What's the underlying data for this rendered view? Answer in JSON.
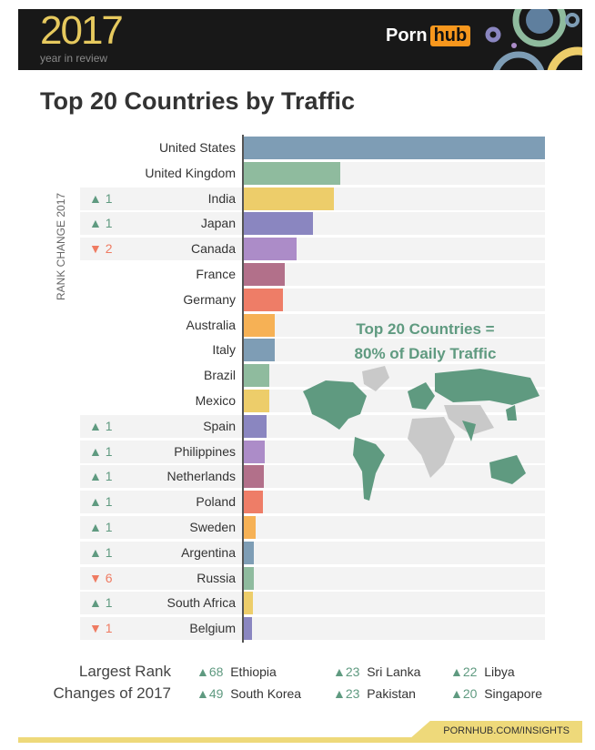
{
  "header": {
    "year": "2017",
    "subtitle": "year in review",
    "logo_left": "Porn",
    "logo_right": "hub"
  },
  "title": "Top 20 Countries by Traffic",
  "chart_data": {
    "type": "bar",
    "orientation": "horizontal",
    "title": "Top 20 Countries by Traffic",
    "ylabel": "RANK CHANGE 2017",
    "note": "relative traffic, United States = 100 (no axis printed)",
    "categories": [
      "United States",
      "United Kingdom",
      "India",
      "Japan",
      "Canada",
      "France",
      "Germany",
      "Australia",
      "Italy",
      "Brazil",
      "Mexico",
      "Spain",
      "Philippines",
      "Netherlands",
      "Poland",
      "Sweden",
      "Argentina",
      "Russia",
      "South Africa",
      "Belgium"
    ],
    "values": [
      100,
      32,
      30,
      23,
      17.5,
      13.6,
      13,
      10.3,
      10.3,
      8.5,
      8.5,
      7.5,
      7,
      6.6,
      6.3,
      4,
      3.3,
      3.3,
      3,
      2.7
    ],
    "rank_change": [
      null,
      null,
      "▲ 1",
      "▲ 1",
      "▼ 2",
      null,
      null,
      null,
      null,
      null,
      null,
      "▲ 1",
      "▲ 1",
      "▲ 1",
      "▲ 1",
      "▲ 1",
      "▲ 1",
      "▼ 6",
      "▲ 1",
      "▼ 1"
    ],
    "colors": [
      "#7e9db5",
      "#8fbb9e",
      "#edcd6a",
      "#8a86c0",
      "#ac8cc8",
      "#b2708a",
      "#ee7d67",
      "#f6b155",
      "#7e9db5",
      "#8fbb9e",
      "#edcd6a",
      "#8a86c0",
      "#ac8cc8",
      "#b2708a",
      "#ee7d67",
      "#f6b155",
      "#7e9db5",
      "#8fbb9e",
      "#edcd6a",
      "#8a86c0"
    ],
    "grid": false,
    "legend": "none"
  },
  "callout": {
    "line1": "Top 20 Countries =",
    "line2": "80% of Daily Traffic"
  },
  "largest": {
    "label_line1": "Largest Rank",
    "label_line2": "Changes of 2017",
    "items": [
      {
        "num": "▲68",
        "country": "Ethiopia"
      },
      {
        "num": "▲49",
        "country": "South Korea"
      },
      {
        "num": "▲23",
        "country": "Sri Lanka"
      },
      {
        "num": "▲23",
        "country": "Pakistan"
      },
      {
        "num": "▲22",
        "country": "Libya"
      },
      {
        "num": "▲20",
        "country": "Singapore"
      }
    ]
  },
  "footer": {
    "link": "PORNHUB.COM/INSIGHTS"
  },
  "colors": {
    "up": "#5f9a80",
    "down": "#ef7b62",
    "header_bg": "#181818",
    "accent": "#eed97a"
  }
}
